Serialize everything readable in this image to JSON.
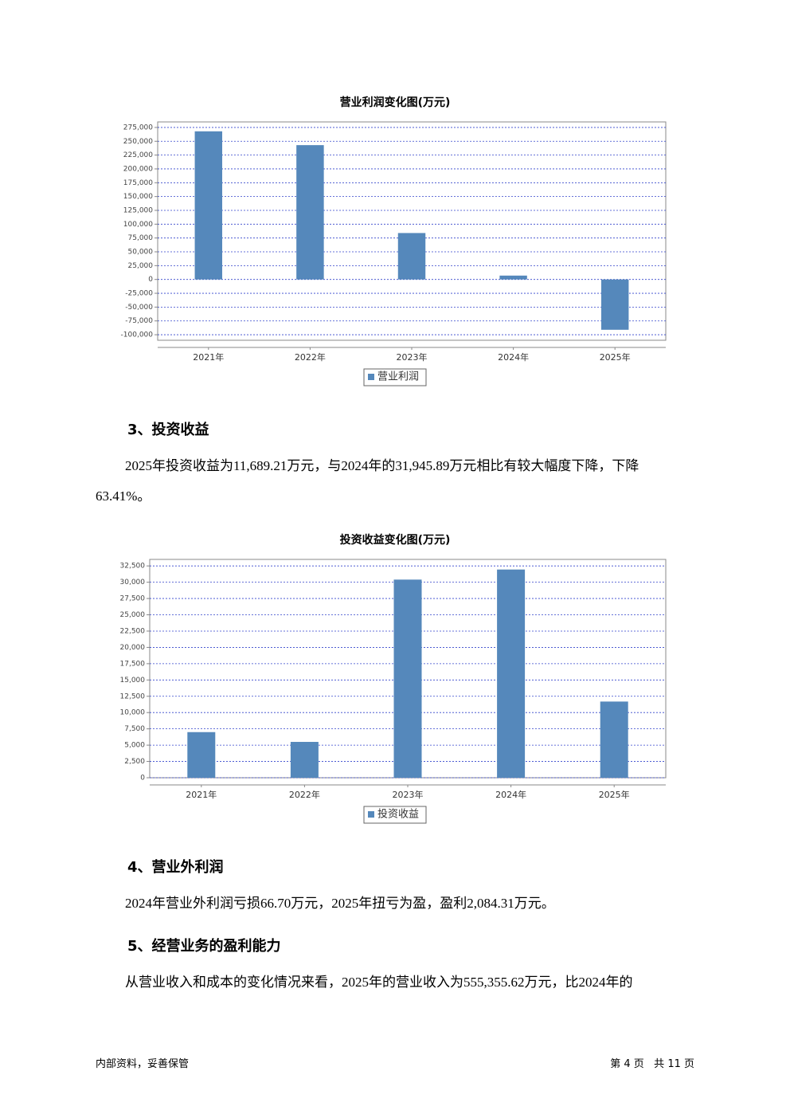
{
  "chart_data": [
    {
      "type": "bar",
      "title": "营业利润变化图(万元)",
      "categories": [
        "2021年",
        "2022年",
        "2023年",
        "2024年",
        "2025年"
      ],
      "series": [
        {
          "name": "营业利润",
          "color": "#5588bb",
          "values": [
            268000,
            243000,
            84000,
            7000,
            -91000
          ]
        }
      ],
      "ylim": [
        -110000,
        285000
      ],
      "yticks": [
        {
          "value": 275000,
          "label": "275,000"
        },
        {
          "value": 250000,
          "label": "250,000"
        },
        {
          "value": 225000,
          "label": "225,000"
        },
        {
          "value": 200000,
          "label": "200,000"
        },
        {
          "value": 175000,
          "label": "175,000"
        },
        {
          "value": 150000,
          "label": "150,000"
        },
        {
          "value": 125000,
          "label": "125,000"
        },
        {
          "value": 100000,
          "label": "100,000"
        },
        {
          "value": 75000,
          "label": "75,000"
        },
        {
          "value": 50000,
          "label": "50,000"
        },
        {
          "value": 25000,
          "label": "25,000"
        },
        0,
        {
          "value": -25000,
          "label": "-25,000"
        },
        {
          "value": -50000,
          "label": "-50,000"
        },
        {
          "value": -75000,
          "label": "-75,000"
        },
        {
          "value": -100000,
          "label": "-100,000"
        }
      ],
      "grid": true,
      "legend": "bottom"
    },
    {
      "type": "bar",
      "title": "投资收益变化图(万元)",
      "categories": [
        "2021年",
        "2022年",
        "2023年",
        "2024年",
        "2025年"
      ],
      "series": [
        {
          "name": "投资收益",
          "color": "#5588bb",
          "values": [
            7000,
            5500,
            30400,
            31945.89,
            11689.21
          ]
        }
      ],
      "ylim": [
        0,
        33500
      ],
      "yticks": [
        {
          "value": 32500,
          "label": "32,500"
        },
        {
          "value": 30000,
          "label": "30,000"
        },
        {
          "value": 27500,
          "label": "27,500"
        },
        {
          "value": 25000,
          "label": "25,000"
        },
        {
          "value": 22500,
          "label": "22,500"
        },
        {
          "value": 20000,
          "label": "20,000"
        },
        {
          "value": 17500,
          "label": "17,500"
        },
        {
          "value": 15000,
          "label": "15,000"
        },
        {
          "value": 12500,
          "label": "12,500"
        },
        {
          "value": 10000,
          "label": "10,000"
        },
        {
          "value": 7500,
          "label": "7,500"
        },
        {
          "value": 5000,
          "label": "5,000"
        },
        {
          "value": 2500,
          "label": "2,500"
        },
        0
      ],
      "grid": true,
      "legend": "bottom"
    }
  ],
  "sections": [
    {
      "heading": "3、投资收益",
      "text": "2025年投资收益为11,689.21万元，与2024年的31,945.89万元相比有较大幅度下降，下降63.41%。"
    },
    {
      "heading": "4、营业外利润",
      "text": "2024年营业外利润亏损66.70万元，2025年扭亏为盈，盈利2,084.31万元。"
    },
    {
      "heading": "5、经营业务的盈利能力",
      "text": "从营业收入和成本的变化情况来看，2025年的营业收入为555,355.62万元，比2024年的"
    }
  ],
  "footer": {
    "left": "内部资料，妥善保管",
    "right": "第 4 页   共 11 页"
  }
}
